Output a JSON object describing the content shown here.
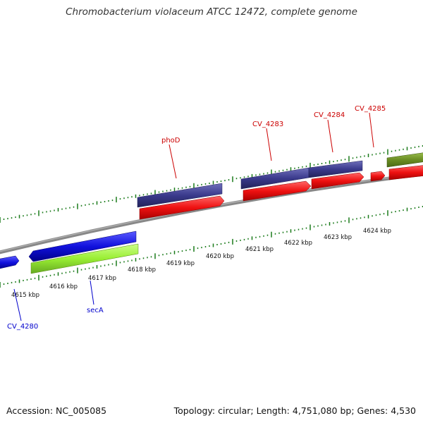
{
  "title": "Chromobacterium violaceum ATCC 12472, complete genome",
  "footer": {
    "accession": "Accession: NC_005085",
    "summary": "Topology: circular; Length: 4,751,080 bp; Genes: 4,530"
  },
  "colors": {
    "backbone": "#888888",
    "ticks": "#1a7a1a",
    "plus_cds": "#3a3a8c",
    "minus_cds": "#ee1111",
    "blue_cds": "#1111dd",
    "lime_cds": "#99ee33",
    "olive_cds": "#6b8e23",
    "label_red": "#cc0000",
    "label_blue": "#0000cc"
  },
  "scale": {
    "ticks": [
      {
        "label": "4615 kbp"
      },
      {
        "label": "4616 kbp"
      },
      {
        "label": "4617 kbp"
      },
      {
        "label": "4618 kbp"
      },
      {
        "label": "4619 kbp"
      },
      {
        "label": "4620 kbp"
      },
      {
        "label": "4621 kbp"
      },
      {
        "label": "4622 kbp"
      },
      {
        "label": "4623 kbp"
      },
      {
        "label": "4624 kbp"
      }
    ]
  },
  "gene_labels": [
    {
      "name": "CV_4280"
    },
    {
      "name": "secA"
    },
    {
      "name": "phoD"
    },
    {
      "name": "CV_4283"
    },
    {
      "name": "CV_4284"
    },
    {
      "name": "CV_4285"
    }
  ]
}
